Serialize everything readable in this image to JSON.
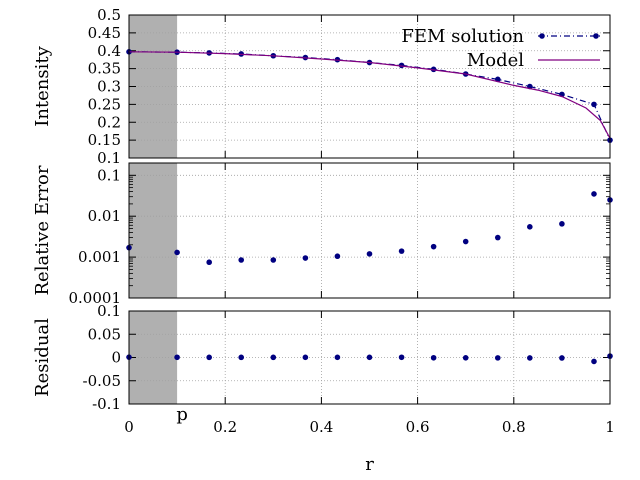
{
  "chart_data": [
    {
      "panel": "intensity",
      "type": "line",
      "ylabel": "Intensity",
      "xlim": [
        0,
        1
      ],
      "ylim": [
        0.1,
        0.5
      ],
      "yscale": "linear",
      "yticks": [
        0.1,
        0.15,
        0.2,
        0.25,
        0.3,
        0.35,
        0.4,
        0.45,
        0.5
      ],
      "ytick_labels": [
        "0.1",
        "0.15",
        "0.2",
        "0.25",
        "0.3",
        "0.35",
        "0.4",
        "0.45",
        "0.5"
      ],
      "grid": true,
      "shaded_region": [
        0,
        0.1
      ],
      "legend_position": "top-right",
      "series": [
        {
          "name": "FEM solution",
          "style": "dash-dot line with circle markers",
          "color": "#000080",
          "x": [
            0,
            0.1,
            0.1667,
            0.2333,
            0.3,
            0.3667,
            0.4333,
            0.5,
            0.5667,
            0.6333,
            0.7,
            0.7667,
            0.8333,
            0.9,
            0.9667,
            1.0
          ],
          "y": [
            0.397,
            0.396,
            0.394,
            0.391,
            0.386,
            0.381,
            0.375,
            0.367,
            0.359,
            0.348,
            0.335,
            0.32,
            0.3,
            0.278,
            0.25,
            0.15
          ]
        },
        {
          "name": "Model",
          "style": "solid line",
          "color": "#800080",
          "x": [
            0,
            0.1,
            0.2,
            0.3,
            0.4,
            0.5,
            0.6,
            0.7,
            0.8,
            0.85,
            0.9,
            0.95,
            0.98,
            1.0
          ],
          "y": [
            0.397,
            0.396,
            0.392,
            0.386,
            0.377,
            0.367,
            0.352,
            0.335,
            0.303,
            0.29,
            0.272,
            0.24,
            0.205,
            0.155
          ]
        }
      ]
    },
    {
      "panel": "relative-error",
      "type": "scatter",
      "ylabel": "Relative Error",
      "xlim": [
        0,
        1
      ],
      "ylim": [
        0.0001,
        0.2
      ],
      "yscale": "log",
      "yticks": [
        0.0001,
        0.001,
        0.01,
        0.1
      ],
      "ytick_labels": [
        "0.0001",
        "0.001",
        "0.01",
        "0.1"
      ],
      "grid": true,
      "shaded_region": [
        0,
        0.1
      ],
      "series": [
        {
          "color": "#000080",
          "x": [
            0,
            0.1,
            0.1667,
            0.2333,
            0.3,
            0.3667,
            0.4333,
            0.5,
            0.5667,
            0.6333,
            0.7,
            0.7667,
            0.8333,
            0.9,
            0.9667,
            1.0
          ],
          "y": [
            0.0017,
            0.0013,
            0.00075,
            0.00085,
            0.00085,
            0.00095,
            0.00105,
            0.0012,
            0.0014,
            0.0018,
            0.0024,
            0.003,
            0.0055,
            0.0065,
            0.035,
            0.025
          ]
        }
      ]
    },
    {
      "panel": "residual",
      "type": "scatter",
      "ylabel": "Residual",
      "xlabel": "r",
      "xlim": [
        0,
        1
      ],
      "ylim": [
        -0.1,
        0.1
      ],
      "yscale": "linear",
      "yticks": [
        -0.1,
        -0.05,
        0,
        0.05,
        0.1
      ],
      "ytick_labels": [
        "-0.1",
        "-0.05",
        "0",
        "0.05",
        "0.1"
      ],
      "xticks": [
        0,
        0.2,
        0.4,
        0.6,
        0.8,
        1
      ],
      "xtick_labels": [
        "0",
        "0.2",
        "0.4",
        "0.6",
        "0.8",
        "1"
      ],
      "grid": true,
      "shaded_region": [
        0,
        0.1
      ],
      "annotation": {
        "text": "p",
        "x": 0.1
      },
      "series": [
        {
          "color": "#000080",
          "x": [
            0,
            0.1,
            0.1667,
            0.2333,
            0.3,
            0.3667,
            0.4333,
            0.5,
            0.5667,
            0.6333,
            0.7,
            0.7667,
            0.8333,
            0.9,
            0.9667,
            1.0
          ],
          "y": [
            0.0007,
            0.0005,
            0.0003,
            0.0003,
            0.0003,
            0.0004,
            0.0004,
            0.0004,
            0.0005,
            -0.0006,
            -0.0007,
            -0.0008,
            -0.0009,
            -0.001,
            -0.0085,
            0.003
          ]
        }
      ]
    }
  ]
}
